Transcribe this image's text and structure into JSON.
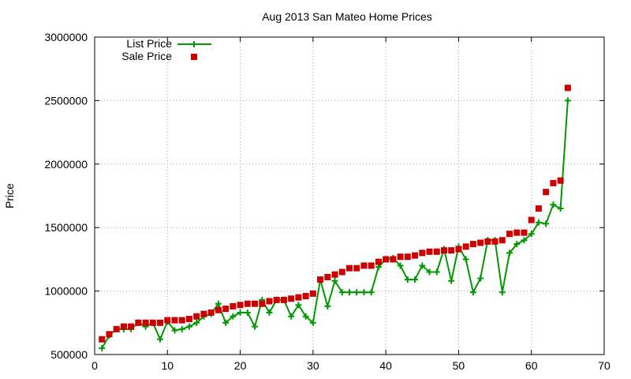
{
  "chart_data": {
    "type": "line",
    "title": "Aug 2013 San Mateo Home Prices",
    "xlabel": "",
    "ylabel": "Price",
    "xlim": [
      0,
      70
    ],
    "ylim": [
      500000,
      3000000
    ],
    "xticks": [
      0,
      10,
      20,
      30,
      40,
      50,
      60,
      70
    ],
    "yticks": [
      500000,
      1000000,
      1500000,
      2000000,
      2500000,
      3000000
    ],
    "grid": true,
    "legend_position": "top-left",
    "series": [
      {
        "name": "List Price",
        "style": "linespoints",
        "marker": "plus",
        "color": "#009900",
        "x": [
          1,
          2,
          3,
          4,
          5,
          6,
          7,
          8,
          9,
          10,
          11,
          12,
          13,
          14,
          15,
          16,
          17,
          18,
          19,
          20,
          21,
          22,
          23,
          24,
          25,
          26,
          27,
          28,
          29,
          30,
          31,
          32,
          33,
          34,
          35,
          36,
          37,
          38,
          39,
          40,
          41,
          42,
          43,
          44,
          45,
          46,
          47,
          48,
          49,
          50,
          51,
          52,
          53,
          54,
          55,
          56,
          57,
          58,
          59,
          60,
          61,
          62,
          63,
          64,
          65
        ],
        "y": [
          550000,
          650000,
          700000,
          700000,
          700000,
          750000,
          720000,
          750000,
          620000,
          760000,
          690000,
          700000,
          720000,
          750000,
          800000,
          820000,
          900000,
          750000,
          800000,
          830000,
          830000,
          720000,
          930000,
          830000,
          930000,
          930000,
          800000,
          890000,
          800000,
          750000,
          1090000,
          880000,
          1080000,
          990000,
          990000,
          990000,
          990000,
          990000,
          1190000,
          1250000,
          1260000,
          1200000,
          1090000,
          1090000,
          1200000,
          1150000,
          1150000,
          1330000,
          1080000,
          1350000,
          1250000,
          990000,
          1100000,
          1400000,
          1400000,
          990000,
          1300000,
          1370000,
          1400000,
          1450000,
          1540000,
          1530000,
          1680000,
          1650000,
          2500000
        ]
      },
      {
        "name": "Sale Price",
        "style": "points",
        "marker": "square",
        "color": "#cc0000",
        "x": [
          1,
          2,
          3,
          4,
          5,
          6,
          7,
          8,
          9,
          10,
          11,
          12,
          13,
          14,
          15,
          16,
          17,
          18,
          19,
          20,
          21,
          22,
          23,
          24,
          25,
          26,
          27,
          28,
          29,
          30,
          31,
          32,
          33,
          34,
          35,
          36,
          37,
          38,
          39,
          40,
          41,
          42,
          43,
          44,
          45,
          46,
          47,
          48,
          49,
          50,
          51,
          52,
          53,
          54,
          55,
          56,
          57,
          58,
          59,
          60,
          61,
          62,
          63,
          64,
          65
        ],
        "y": [
          620000,
          660000,
          700000,
          720000,
          720000,
          750000,
          750000,
          750000,
          750000,
          770000,
          770000,
          770000,
          780000,
          800000,
          820000,
          830000,
          850000,
          860000,
          880000,
          890000,
          900000,
          900000,
          900000,
          920000,
          930000,
          930000,
          940000,
          950000,
          960000,
          980000,
          1090000,
          1110000,
          1130000,
          1150000,
          1180000,
          1180000,
          1200000,
          1200000,
          1230000,
          1250000,
          1250000,
          1270000,
          1270000,
          1280000,
          1300000,
          1310000,
          1310000,
          1320000,
          1320000,
          1330000,
          1350000,
          1370000,
          1380000,
          1390000,
          1390000,
          1400000,
          1450000,
          1460000,
          1460000,
          1560000,
          1650000,
          1780000,
          1850000,
          1870000,
          2600000
        ]
      }
    ]
  }
}
